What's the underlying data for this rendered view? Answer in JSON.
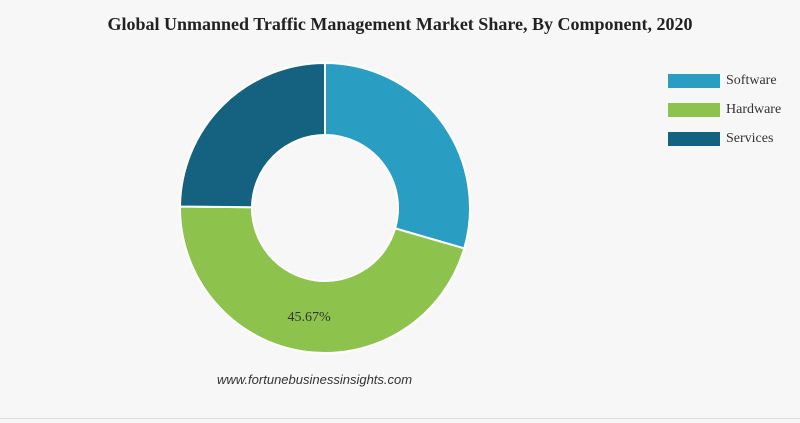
{
  "chart_data": {
    "type": "pie",
    "title": "Global Unmanned Traffic Management Market Share, By Component, 2020",
    "categories": [
      "Software",
      "Hardware",
      "Services"
    ],
    "values": [
      29.5,
      45.67,
      24.83
    ],
    "unit": "%",
    "data_labels": [
      "",
      "45.67%",
      ""
    ],
    "colors": [
      "#2a9dc3",
      "#8dc34d",
      "#14627f"
    ],
    "donut": true,
    "legend_position": "top-right"
  },
  "source": "www.fortunebusinessinsights.com"
}
